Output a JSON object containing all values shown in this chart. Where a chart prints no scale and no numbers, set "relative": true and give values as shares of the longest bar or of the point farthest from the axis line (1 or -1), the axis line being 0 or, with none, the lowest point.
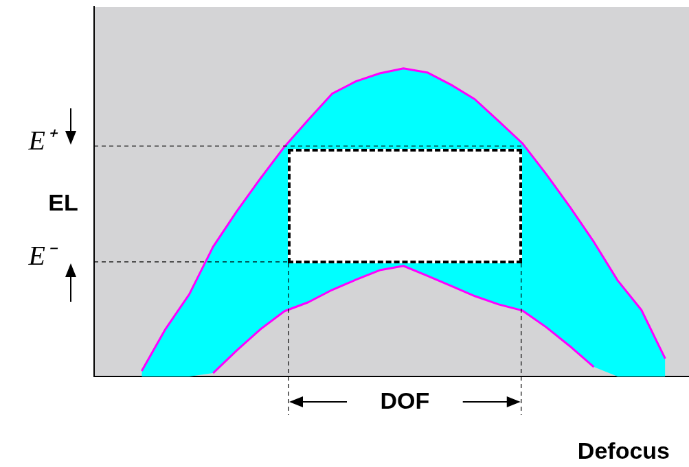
{
  "chart_data": {
    "type": "line",
    "relative": true,
    "xlabel": "Defocus",
    "annotations": [
      "EL",
      "DOF"
    ],
    "legend": false,
    "grid": false,
    "tick_labels": false,
    "categories": [
      null,
      null,
      null,
      null,
      null,
      null,
      null,
      null,
      null,
      null,
      null,
      null,
      null,
      null,
      null,
      null,
      null,
      null,
      null,
      null,
      null,
      null,
      null,
      null,
      null,
      null
    ],
    "series": [
      {
        "type": "area",
        "color": "#00ffff",
        "values": [
          null,
          null,
          0.018,
          0.154,
          0.267,
          0.421,
          0.537,
          0.644,
          0.746,
          0.833,
          0.918,
          0.958,
          0.984,
          1,
          0.987,
          0.947,
          0.9,
          0.829,
          0.757,
          0.657,
          0.55,
          0.437,
          0.312,
          0.216,
          0.058,
          null
        ]
      },
      {
        "type": "line",
        "color": "#ff00ff",
        "values": [
          null,
          null,
          0.018,
          0.154,
          0.267,
          0.421,
          0.537,
          0.644,
          0.746,
          0.833,
          0.918,
          0.958,
          0.984,
          1,
          0.987,
          0.947,
          0.9,
          0.829,
          0.757,
          0.657,
          0.55,
          0.437,
          0.312,
          0.216,
          0.058,
          null
        ]
      },
      {
        "color": "#ff00ff",
        "values": [
          null,
          null,
          null,
          null,
          null,
          0.011,
          0.085,
          0.154,
          0.212,
          0.241,
          0.281,
          0.314,
          0.345,
          0.359,
          0.327,
          0.294,
          0.261,
          0.234,
          0.214,
          0.16,
          0.098,
          0.031,
          null,
          null,
          null,
          null
        ]
      }
    ],
    "ref_lines": [
      {
        "axis": "y",
        "value": 0.748,
        "label": "E⁺",
        "color": "#000000",
        "line_style": "dashed"
      },
      {
        "axis": "y",
        "value": 0.372,
        "label": "E⁻",
        "color": "#000000",
        "line_style": "dashed"
      }
    ]
  }
}
